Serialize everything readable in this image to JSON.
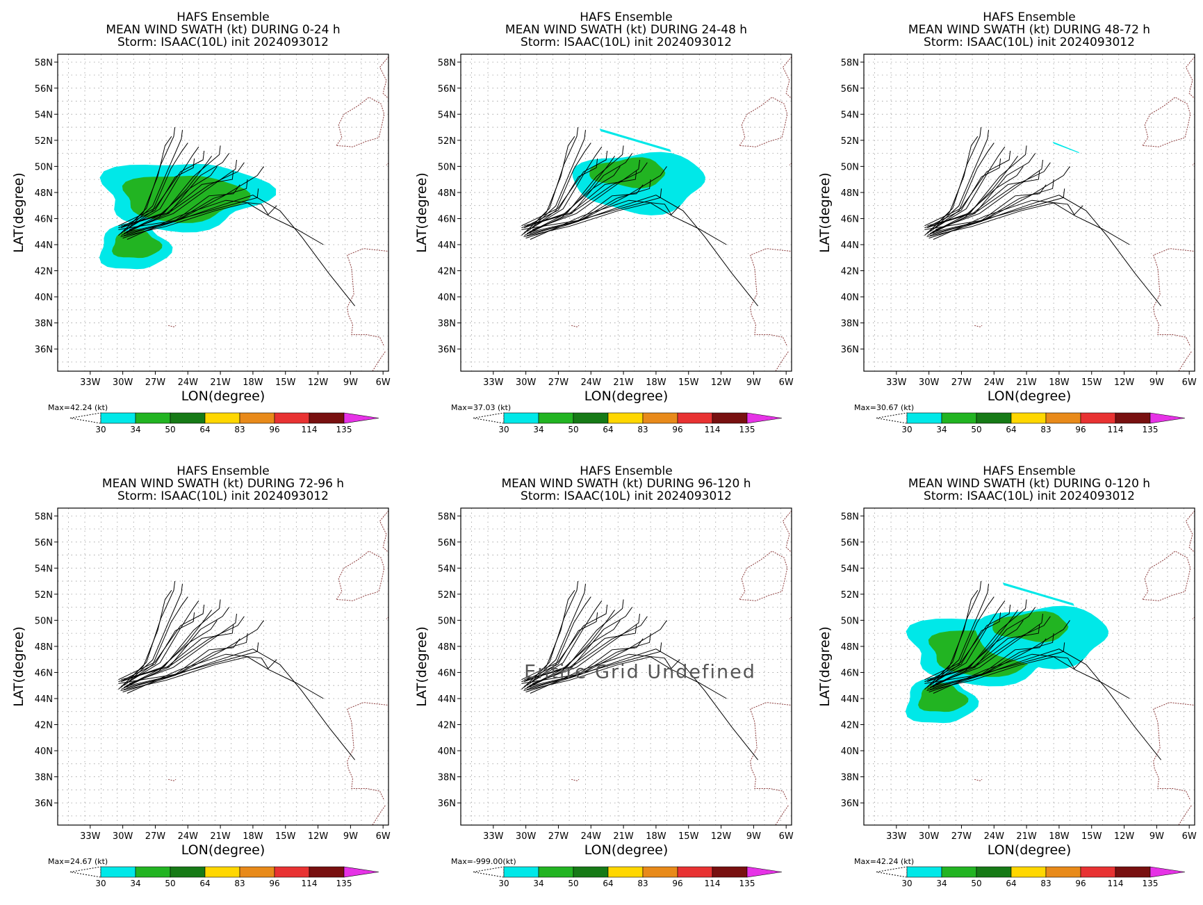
{
  "figure": {
    "x_axis_label": "LON(degree)",
    "y_axis_label": "LAT(degree)",
    "colorbar_unit": "(kt)",
    "colorbar_levels": [
      "30",
      "34",
      "50",
      "64",
      "83",
      "96",
      "114",
      "135"
    ],
    "colorbar_colors": [
      "#00e8e8",
      "#22b422",
      "#167a16",
      "#ffd700",
      "#e88a1a",
      "#e83232",
      "#781010",
      "#e632e6"
    ],
    "coastline_color": "#8b3a3a",
    "track_color": "#000000"
  },
  "chart_data": [
    {
      "type": "map",
      "title": "HAFS Ensemble",
      "subtitle": "MEAN WIND SWATH (kt) DURING  0-24 h",
      "storm": "Storm: ISAAC(10L) init 2024093012",
      "max_label": "Max=42.24 (kt)",
      "max_value": 42.24,
      "x_ticks": [
        "33W",
        "30W",
        "27W",
        "24W",
        "21W",
        "18W",
        "15W",
        "12W",
        "9W",
        "6W"
      ],
      "y_ticks": [
        "58N",
        "56N",
        "54N",
        "52N",
        "50N",
        "48N",
        "46N",
        "44N",
        "42N",
        "40N",
        "38N",
        "36N"
      ],
      "xlim": [
        -36,
        -5.5
      ],
      "ylim": [
        34.3,
        58.6
      ],
      "grid": true,
      "swath": "0-24",
      "undefined_text": ""
    },
    {
      "type": "map",
      "title": "HAFS Ensemble",
      "subtitle": "MEAN WIND SWATH (kt) DURING 24-48 h",
      "storm": "Storm: ISAAC(10L) init 2024093012",
      "max_label": "Max=37.03 (kt)",
      "max_value": 37.03,
      "x_ticks": [
        "33W",
        "30W",
        "27W",
        "24W",
        "21W",
        "18W",
        "15W",
        "12W",
        "9W",
        "6W"
      ],
      "y_ticks": [
        "58N",
        "56N",
        "54N",
        "52N",
        "50N",
        "48N",
        "46N",
        "44N",
        "42N",
        "40N",
        "38N",
        "36N"
      ],
      "xlim": [
        -36,
        -5.5
      ],
      "ylim": [
        34.3,
        58.6
      ],
      "grid": true,
      "swath": "24-48",
      "undefined_text": ""
    },
    {
      "type": "map",
      "title": "HAFS Ensemble",
      "subtitle": "MEAN WIND SWATH (kt) DURING 48-72 h",
      "storm": "Storm: ISAAC(10L) init 2024093012",
      "max_label": "Max=30.67 (kt)",
      "max_value": 30.67,
      "x_ticks": [
        "33W",
        "30W",
        "27W",
        "24W",
        "21W",
        "18W",
        "15W",
        "12W",
        "9W",
        "6W"
      ],
      "y_ticks": [
        "58N",
        "56N",
        "54N",
        "52N",
        "50N",
        "48N",
        "46N",
        "44N",
        "42N",
        "40N",
        "38N",
        "36N"
      ],
      "xlim": [
        -36,
        -5.5
      ],
      "ylim": [
        34.3,
        58.6
      ],
      "grid": true,
      "swath": "48-72",
      "undefined_text": ""
    },
    {
      "type": "map",
      "title": "HAFS Ensemble",
      "subtitle": "MEAN WIND SWATH (kt) DURING 72-96 h",
      "storm": "Storm: ISAAC(10L) init 2024093012",
      "max_label": "Max=24.67 (kt)",
      "max_value": 24.67,
      "x_ticks": [
        "33W",
        "30W",
        "27W",
        "24W",
        "21W",
        "18W",
        "15W",
        "12W",
        "9W",
        "6W"
      ],
      "y_ticks": [
        "58N",
        "56N",
        "54N",
        "52N",
        "50N",
        "48N",
        "46N",
        "44N",
        "42N",
        "40N",
        "38N",
        "36N"
      ],
      "xlim": [
        -36,
        -5.5
      ],
      "ylim": [
        34.3,
        58.6
      ],
      "grid": true,
      "swath": "none",
      "undefined_text": ""
    },
    {
      "type": "map",
      "title": "HAFS Ensemble",
      "subtitle": "MEAN WIND SWATH (kt) DURING 96-120 h",
      "storm": "Storm: ISAAC(10L) init 2024093012",
      "max_label": "Max=-999.00(kt)",
      "max_value": -999.0,
      "x_ticks": [
        "33W",
        "30W",
        "27W",
        "24W",
        "21W",
        "18W",
        "15W",
        "12W",
        "9W",
        "6W"
      ],
      "y_ticks": [
        "58N",
        "56N",
        "54N",
        "52N",
        "50N",
        "48N",
        "46N",
        "44N",
        "42N",
        "40N",
        "38N",
        "36N"
      ],
      "xlim": [
        -36,
        -5.5
      ],
      "ylim": [
        34.3,
        58.6
      ],
      "grid": true,
      "swath": "none",
      "undefined_text": "Entire Grid Undefined"
    },
    {
      "type": "map",
      "title": "HAFS Ensemble",
      "subtitle": "MEAN WIND SWATH (kt) DURING 0-120 h",
      "storm": "Storm: ISAAC(10L) init 2024093012",
      "max_label": "Max=42.24 (kt)",
      "max_value": 42.24,
      "x_ticks": [
        "33W",
        "30W",
        "27W",
        "24W",
        "21W",
        "18W",
        "15W",
        "12W",
        "9W",
        "6W"
      ],
      "y_ticks": [
        "58N",
        "56N",
        "54N",
        "52N",
        "50N",
        "48N",
        "46N",
        "44N",
        "42N",
        "40N",
        "38N",
        "36N"
      ],
      "xlim": [
        -36,
        -5.5
      ],
      "ylim": [
        34.3,
        58.6
      ],
      "grid": true,
      "swath": "0-120",
      "undefined_text": ""
    }
  ]
}
